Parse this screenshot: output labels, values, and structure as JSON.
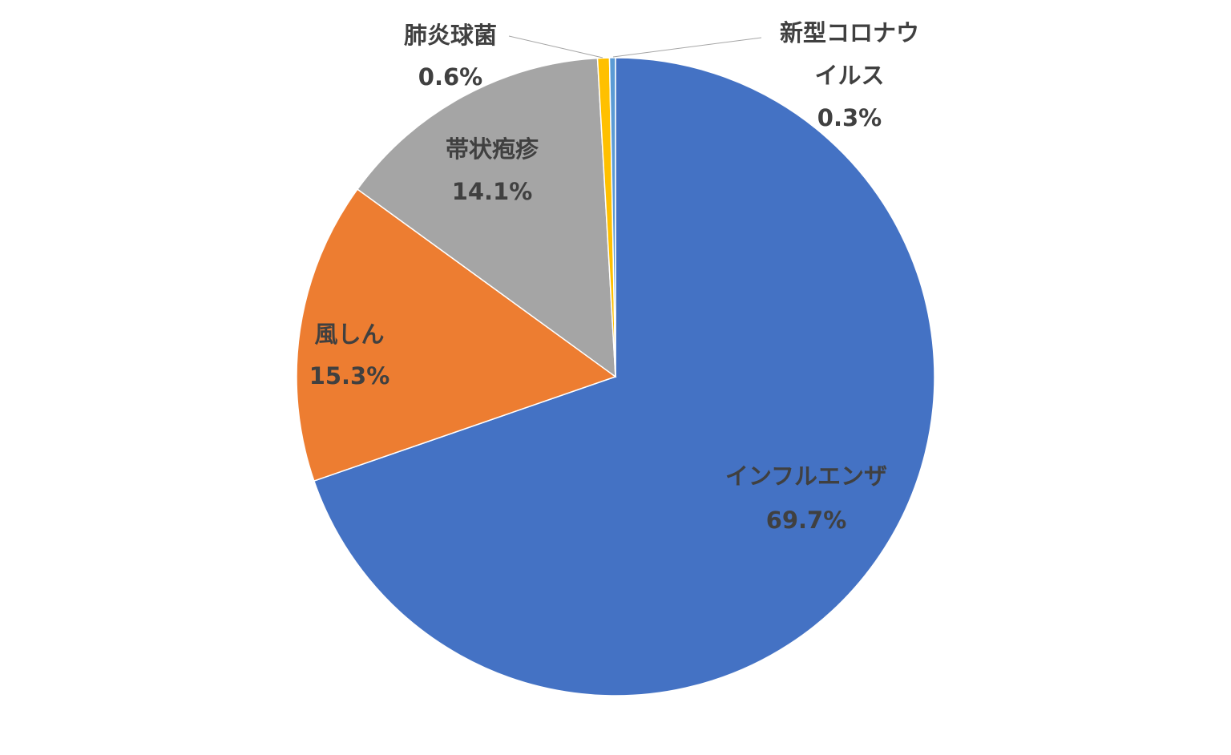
{
  "chart_data": {
    "type": "pie",
    "title": "",
    "start_angle_deg": 0,
    "direction": "clockwise",
    "slices": [
      {
        "label": "インフルエンザ",
        "value": 69.7,
        "value_label": "69.7%",
        "color": "#4472C4",
        "label_lines": [
          "インフルエンザ"
        ]
      },
      {
        "label": "風しん",
        "value": 15.3,
        "value_label": "15.3%",
        "color": "#ED7D31",
        "label_lines": [
          "風しん"
        ]
      },
      {
        "label": "帯状疱疹",
        "value": 14.1,
        "value_label": "14.1%",
        "color": "#A5A5A5",
        "label_lines": [
          "帯状疱疹"
        ]
      },
      {
        "label": "肺炎球菌",
        "value": 0.6,
        "value_label": "0.6%",
        "color": "#FFC000",
        "label_lines": [
          "肺炎球菌"
        ]
      },
      {
        "label": "新型コロナウイルス",
        "value": 0.3,
        "value_label": "0.3%",
        "color": "#5B9BD5",
        "label_lines": [
          "新型コロナウ",
          "イルス"
        ]
      }
    ],
    "legend": "none",
    "label_color": "#404040",
    "leader_line_color": "#A6A6A6"
  }
}
